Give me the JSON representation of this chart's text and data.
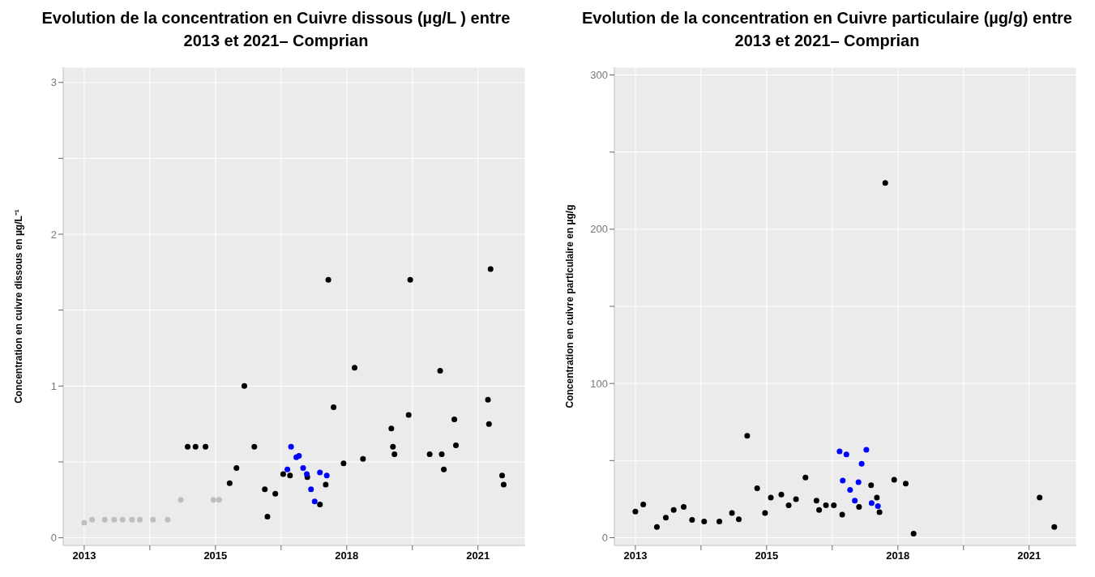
{
  "chart_data": [
    {
      "type": "scatter",
      "title": "Evolution de la concentration en Cuivre dissous (µg/L ) entre 2013 et 2021– Comprian",
      "ylabel": "Concentration en cuivre   dissous en µg/L⁻¹",
      "xlim": [
        2012.6,
        2021.4
      ],
      "xticks": [
        {
          "value": 2013,
          "label": "2013"
        },
        {
          "value": 2014.25,
          "label": null
        },
        {
          "value": 2015.5,
          "label": "2015"
        },
        {
          "value": 2016.75,
          "label": null
        },
        {
          "value": 2018,
          "label": "2018"
        },
        {
          "value": 2019.25,
          "label": null
        },
        {
          "value": 2020.5,
          "label": "2021"
        }
      ],
      "ylim": [
        -0.05,
        3.1
      ],
      "yticks": [
        0,
        {
          "value": 0.5,
          "label": null
        },
        1,
        {
          "value": 1.5,
          "label": null
        },
        2,
        {
          "value": 2.5,
          "label": null
        },
        3
      ],
      "grid": true,
      "marker": "circle",
      "series": [
        {
          "color": "#bebebe",
          "x": [
            2013.0,
            2013.15,
            2013.39,
            2013.57,
            2013.73,
            2013.91,
            2014.06,
            2014.31,
            2014.59,
            2014.84,
            2015.46,
            2015.57
          ],
          "values": [
            0.1,
            0.12,
            0.12,
            0.12,
            0.12,
            0.12,
            0.12,
            0.12,
            0.12,
            0.25,
            0.25,
            0.25
          ]
        },
        {
          "color": "#000000",
          "x": [
            2014.97,
            2015.12,
            2015.31,
            2015.77,
            2015.9,
            2016.05,
            2016.24,
            2016.44,
            2016.49,
            2016.64,
            2016.79,
            2016.92,
            2017.15,
            2017.25,
            2017.49,
            2017.6,
            2017.65,
            2017.75,
            2017.94,
            2018.15,
            2018.31,
            2018.85,
            2018.88,
            2018.91,
            2019.18,
            2019.21,
            2019.58,
            2019.78,
            2019.81,
            2019.85,
            2020.05,
            2020.08,
            2020.69,
            2020.71,
            2020.74,
            2020.96,
            2020.99
          ],
          "values": [
            0.6,
            0.6,
            0.6,
            0.36,
            0.46,
            1.0,
            0.6,
            0.32,
            0.14,
            0.29,
            0.42,
            0.41,
            null,
            0.4,
            0.22,
            0.35,
            1.7,
            0.86,
            0.49,
            1.12,
            0.52,
            0.72,
            0.6,
            0.55,
            0.81,
            1.7,
            0.55,
            1.1,
            0.55,
            0.45,
            0.78,
            0.61,
            0.91,
            0.75,
            1.77,
            0.41,
            0.35
          ]
        },
        {
          "color": "#0000ff",
          "x": [
            2016.87,
            2016.94,
            2017.04,
            2017.09,
            2017.17,
            2017.24,
            2017.32,
            2017.39,
            2017.49,
            2017.62
          ],
          "values": [
            0.45,
            0.6,
            0.53,
            0.54,
            0.46,
            0.42,
            0.32,
            0.24,
            0.43,
            0.41
          ]
        }
      ]
    },
    {
      "type": "scatter",
      "title": "Evolution de la concentration en Cuivre particulaire (µg/g) entre 2013 et 2021– Comprian",
      "ylabel": "Concentration en cuivre  particulaire en µg/g",
      "xlim": [
        2012.6,
        2021.4
      ],
      "xticks": [
        {
          "value": 2013,
          "label": "2013"
        },
        {
          "value": 2014.25,
          "label": null
        },
        {
          "value": 2015.5,
          "label": "2015"
        },
        {
          "value": 2016.75,
          "label": null
        },
        {
          "value": 2018,
          "label": "2018"
        },
        {
          "value": 2019.25,
          "label": null
        },
        {
          "value": 2020.5,
          "label": "2021"
        }
      ],
      "ylim": [
        -5,
        305
      ],
      "yticks": [
        0,
        {
          "value": 50,
          "label": null
        },
        100,
        {
          "value": 150,
          "label": null
        },
        200,
        {
          "value": 250,
          "label": null
        },
        300
      ],
      "grid": true,
      "marker": "circle",
      "series": [
        {
          "color": "#000000",
          "x": [
            2013.0,
            2013.15,
            2013.41,
            2013.58,
            2013.73,
            2013.92,
            2014.08,
            2014.31,
            2014.6,
            2014.84,
            2014.97,
            2015.13,
            2015.32,
            2015.47,
            2015.58,
            2015.78,
            2015.92,
            2016.06,
            2016.24,
            2016.45,
            2016.5,
            2016.63,
            2016.78,
            2016.94,
            2017.16,
            2017.26,
            2017.49,
            2017.6,
            2017.65,
            2017.76,
            2017.93,
            2018.15,
            2018.3,
            2020.7,
            2020.98
          ],
          "values": [
            17,
            21.5,
            7,
            13,
            18,
            20,
            11.5,
            10.5,
            10.5,
            16,
            12,
            66,
            32,
            16,
            26,
            28,
            21,
            25,
            39,
            24,
            18,
            21,
            21,
            15,
            null,
            20,
            34,
            26,
            16.5,
            230,
            37.5,
            35,
            2.6,
            26,
            7
          ]
        },
        {
          "color": "#0000ff",
          "x": [
            2016.89,
            2016.95,
            2017.02,
            2017.09,
            2017.18,
            2017.25,
            2017.31,
            2017.4,
            2017.5,
            2017.62
          ],
          "values": [
            56,
            37,
            54,
            31,
            24,
            36,
            48,
            57,
            22.5,
            20.5
          ]
        }
      ]
    }
  ]
}
